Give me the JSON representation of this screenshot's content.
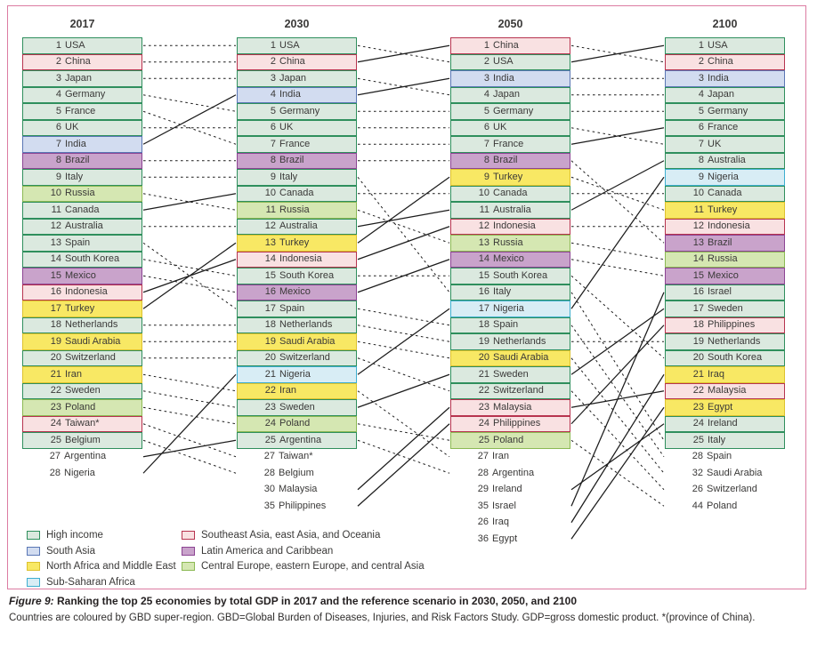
{
  "caption": {
    "prefix": "Figure 9:",
    "title": " Ranking the top 25 economies by total GDP in 2017 and the reference scenario in 2030, 2050, and 2100",
    "body": "Countries are coloured by GBD super-region. GBD=Global Burden of Diseases, Injuries, and Risk Factors Study. GDP=gross domestic product. *(province of China)."
  },
  "colors": {
    "panel_border": "#dc7ca2",
    "connector_line": "#1c1c1c",
    "text": "#3a3938"
  },
  "regions": {
    "high": {
      "label": "High income",
      "fill": "#dbe9df",
      "border": "#2f8f5d"
    },
    "south_asia": {
      "label": "South Asia",
      "fill": "#d2dcf0",
      "border": "#5a77b5"
    },
    "na_me": {
      "label": "North Africa and Middle East",
      "fill": "#f8e864",
      "border": "#ddc22e"
    },
    "ssa": {
      "label": "Sub-Saharan Africa",
      "fill": "#d8edf5",
      "border": "#3eafd0"
    },
    "sea": {
      "label": "Southeast Asia, east Asia, and Oceania",
      "fill": "#f9e1e2",
      "border": "#b7344f"
    },
    "lac": {
      "label": "Latin America and Caribbean",
      "fill": "#c9a3cb",
      "border": "#8c4493"
    },
    "ce_ee_ca": {
      "label": "Central Europe, eastern Europe, and central Asia",
      "fill": "#d5e7b2",
      "border": "#8cb954"
    }
  },
  "legend": {
    "columns": [
      [
        "high",
        "south_asia",
        "na_me",
        "ssa"
      ],
      [
        "sea",
        "lac",
        "ce_ee_ca"
      ]
    ]
  },
  "chart_data": {
    "type": "bump-ranking",
    "title": "Ranking the top 25 economies by total GDP in 2017 and the reference scenario in 2030, 2050, and 2100",
    "connector_rule": "solid line = rank improved between columns; dashed line = rank unchanged or worsened",
    "columns": [
      {
        "year": "2017",
        "boxed": [
          {
            "rank": 1,
            "name": "USA",
            "region": "high"
          },
          {
            "rank": 2,
            "name": "China",
            "region": "sea"
          },
          {
            "rank": 3,
            "name": "Japan",
            "region": "high"
          },
          {
            "rank": 4,
            "name": "Germany",
            "region": "high"
          },
          {
            "rank": 5,
            "name": "France",
            "region": "high"
          },
          {
            "rank": 6,
            "name": "UK",
            "region": "high"
          },
          {
            "rank": 7,
            "name": "India",
            "region": "south_asia"
          },
          {
            "rank": 8,
            "name": "Brazil",
            "region": "lac"
          },
          {
            "rank": 9,
            "name": "Italy",
            "region": "high"
          },
          {
            "rank": 10,
            "name": "Russia",
            "region": "ce_ee_ca"
          },
          {
            "rank": 11,
            "name": "Canada",
            "region": "high"
          },
          {
            "rank": 12,
            "name": "Australia",
            "region": "high"
          },
          {
            "rank": 13,
            "name": "Spain",
            "region": "high"
          },
          {
            "rank": 14,
            "name": "South Korea",
            "region": "high"
          },
          {
            "rank": 15,
            "name": "Mexico",
            "region": "lac"
          },
          {
            "rank": 16,
            "name": "Indonesia",
            "region": "sea"
          },
          {
            "rank": 17,
            "name": "Turkey",
            "region": "na_me"
          },
          {
            "rank": 18,
            "name": "Netherlands",
            "region": "high"
          },
          {
            "rank": 19,
            "name": "Saudi Arabia",
            "region": "na_me"
          },
          {
            "rank": 20,
            "name": "Switzerland",
            "region": "high"
          },
          {
            "rank": 21,
            "name": "Iran",
            "region": "na_me"
          },
          {
            "rank": 22,
            "name": "Sweden",
            "region": "high"
          },
          {
            "rank": 23,
            "name": "Poland",
            "region": "ce_ee_ca"
          },
          {
            "rank": 24,
            "name": "Taiwan*",
            "region": "sea"
          },
          {
            "rank": 25,
            "name": "Belgium",
            "region": "high"
          }
        ],
        "extra": [
          {
            "rank": 27,
            "name": "Argentina"
          },
          {
            "rank": 28,
            "name": "Nigeria"
          }
        ]
      },
      {
        "year": "2030",
        "boxed": [
          {
            "rank": 1,
            "name": "USA",
            "region": "high"
          },
          {
            "rank": 2,
            "name": "China",
            "region": "sea"
          },
          {
            "rank": 3,
            "name": "Japan",
            "region": "high"
          },
          {
            "rank": 4,
            "name": "India",
            "region": "south_asia"
          },
          {
            "rank": 5,
            "name": "Germany",
            "region": "high"
          },
          {
            "rank": 6,
            "name": "UK",
            "region": "high"
          },
          {
            "rank": 7,
            "name": "France",
            "region": "high"
          },
          {
            "rank": 8,
            "name": "Brazil",
            "region": "lac"
          },
          {
            "rank": 9,
            "name": "Italy",
            "region": "high"
          },
          {
            "rank": 10,
            "name": "Canada",
            "region": "high"
          },
          {
            "rank": 11,
            "name": "Russia",
            "region": "ce_ee_ca"
          },
          {
            "rank": 12,
            "name": "Australia",
            "region": "high"
          },
          {
            "rank": 13,
            "name": "Turkey",
            "region": "na_me"
          },
          {
            "rank": 14,
            "name": "Indonesia",
            "region": "sea"
          },
          {
            "rank": 15,
            "name": "South Korea",
            "region": "high"
          },
          {
            "rank": 16,
            "name": "Mexico",
            "region": "lac"
          },
          {
            "rank": 17,
            "name": "Spain",
            "region": "high"
          },
          {
            "rank": 18,
            "name": "Netherlands",
            "region": "high"
          },
          {
            "rank": 19,
            "name": "Saudi Arabia",
            "region": "na_me"
          },
          {
            "rank": 20,
            "name": "Switzerland",
            "region": "high"
          },
          {
            "rank": 21,
            "name": "Nigeria",
            "region": "ssa"
          },
          {
            "rank": 22,
            "name": "Iran",
            "region": "na_me"
          },
          {
            "rank": 23,
            "name": "Sweden",
            "region": "high"
          },
          {
            "rank": 24,
            "name": "Poland",
            "region": "ce_ee_ca"
          },
          {
            "rank": 25,
            "name": "Argentina",
            "region": "high"
          }
        ],
        "extra": [
          {
            "rank": 27,
            "name": "Taiwan*"
          },
          {
            "rank": 28,
            "name": "Belgium"
          },
          {
            "rank": 30,
            "name": "Malaysia"
          },
          {
            "rank": 35,
            "name": "Philippines"
          }
        ]
      },
      {
        "year": "2050",
        "boxed": [
          {
            "rank": 1,
            "name": "China",
            "region": "sea"
          },
          {
            "rank": 2,
            "name": "USA",
            "region": "high"
          },
          {
            "rank": 3,
            "name": "India",
            "region": "south_asia"
          },
          {
            "rank": 4,
            "name": "Japan",
            "region": "high"
          },
          {
            "rank": 5,
            "name": "Germany",
            "region": "high"
          },
          {
            "rank": 6,
            "name": "UK",
            "region": "high"
          },
          {
            "rank": 7,
            "name": "France",
            "region": "high"
          },
          {
            "rank": 8,
            "name": "Brazil",
            "region": "lac"
          },
          {
            "rank": 9,
            "name": "Turkey",
            "region": "na_me"
          },
          {
            "rank": 10,
            "name": "Canada",
            "region": "high"
          },
          {
            "rank": 11,
            "name": "Australia",
            "region": "high"
          },
          {
            "rank": 12,
            "name": "Indonesia",
            "region": "sea"
          },
          {
            "rank": 13,
            "name": "Russia",
            "region": "ce_ee_ca"
          },
          {
            "rank": 14,
            "name": "Mexico",
            "region": "lac"
          },
          {
            "rank": 15,
            "name": "South Korea",
            "region": "high"
          },
          {
            "rank": 16,
            "name": "Italy",
            "region": "high"
          },
          {
            "rank": 17,
            "name": "Nigeria",
            "region": "ssa"
          },
          {
            "rank": 18,
            "name": "Spain",
            "region": "high"
          },
          {
            "rank": 19,
            "name": "Netherlands",
            "region": "high"
          },
          {
            "rank": 20,
            "name": "Saudi Arabia",
            "region": "na_me"
          },
          {
            "rank": 21,
            "name": "Sweden",
            "region": "high"
          },
          {
            "rank": 22,
            "name": "Switzerland",
            "region": "high"
          },
          {
            "rank": 23,
            "name": "Malaysia",
            "region": "sea"
          },
          {
            "rank": 24,
            "name": "Philippines",
            "region": "sea"
          },
          {
            "rank": 25,
            "name": "Poland",
            "region": "ce_ee_ca"
          }
        ],
        "extra": [
          {
            "rank": 27,
            "name": "Iran"
          },
          {
            "rank": 28,
            "name": "Argentina"
          },
          {
            "rank": 29,
            "name": "Ireland"
          },
          {
            "rank": 35,
            "name": "Israel"
          },
          {
            "rank": 26,
            "name": "Iraq"
          },
          {
            "rank": 36,
            "name": "Egypt"
          }
        ]
      },
      {
        "year": "2100",
        "boxed": [
          {
            "rank": 1,
            "name": "USA",
            "region": "high"
          },
          {
            "rank": 2,
            "name": "China",
            "region": "sea"
          },
          {
            "rank": 3,
            "name": "India",
            "region": "south_asia"
          },
          {
            "rank": 4,
            "name": "Japan",
            "region": "high"
          },
          {
            "rank": 5,
            "name": "Germany",
            "region": "high"
          },
          {
            "rank": 6,
            "name": "France",
            "region": "high"
          },
          {
            "rank": 7,
            "name": "UK",
            "region": "high"
          },
          {
            "rank": 8,
            "name": "Australia",
            "region": "high"
          },
          {
            "rank": 9,
            "name": "Nigeria",
            "region": "ssa"
          },
          {
            "rank": 10,
            "name": "Canada",
            "region": "high"
          },
          {
            "rank": 11,
            "name": "Turkey",
            "region": "na_me"
          },
          {
            "rank": 12,
            "name": "Indonesia",
            "region": "sea"
          },
          {
            "rank": 13,
            "name": "Brazil",
            "region": "lac"
          },
          {
            "rank": 14,
            "name": "Russia",
            "region": "ce_ee_ca"
          },
          {
            "rank": 15,
            "name": "Mexico",
            "region": "lac"
          },
          {
            "rank": 16,
            "name": "Israel",
            "region": "high"
          },
          {
            "rank": 17,
            "name": "Sweden",
            "region": "high"
          },
          {
            "rank": 18,
            "name": "Philippines",
            "region": "sea"
          },
          {
            "rank": 19,
            "name": "Netherlands",
            "region": "high"
          },
          {
            "rank": 20,
            "name": "South Korea",
            "region": "high"
          },
          {
            "rank": 21,
            "name": "Iraq",
            "region": "na_me"
          },
          {
            "rank": 22,
            "name": "Malaysia",
            "region": "sea"
          },
          {
            "rank": 23,
            "name": "Egypt",
            "region": "na_me"
          },
          {
            "rank": 24,
            "name": "Ireland",
            "region": "high"
          },
          {
            "rank": 25,
            "name": "Italy",
            "region": "high"
          }
        ],
        "extra": [
          {
            "rank": 28,
            "name": "Spain"
          },
          {
            "rank": 32,
            "name": "Saudi Arabia"
          },
          {
            "rank": 26,
            "name": "Switzerland"
          },
          {
            "rank": 44,
            "name": "Poland"
          }
        ]
      }
    ]
  }
}
